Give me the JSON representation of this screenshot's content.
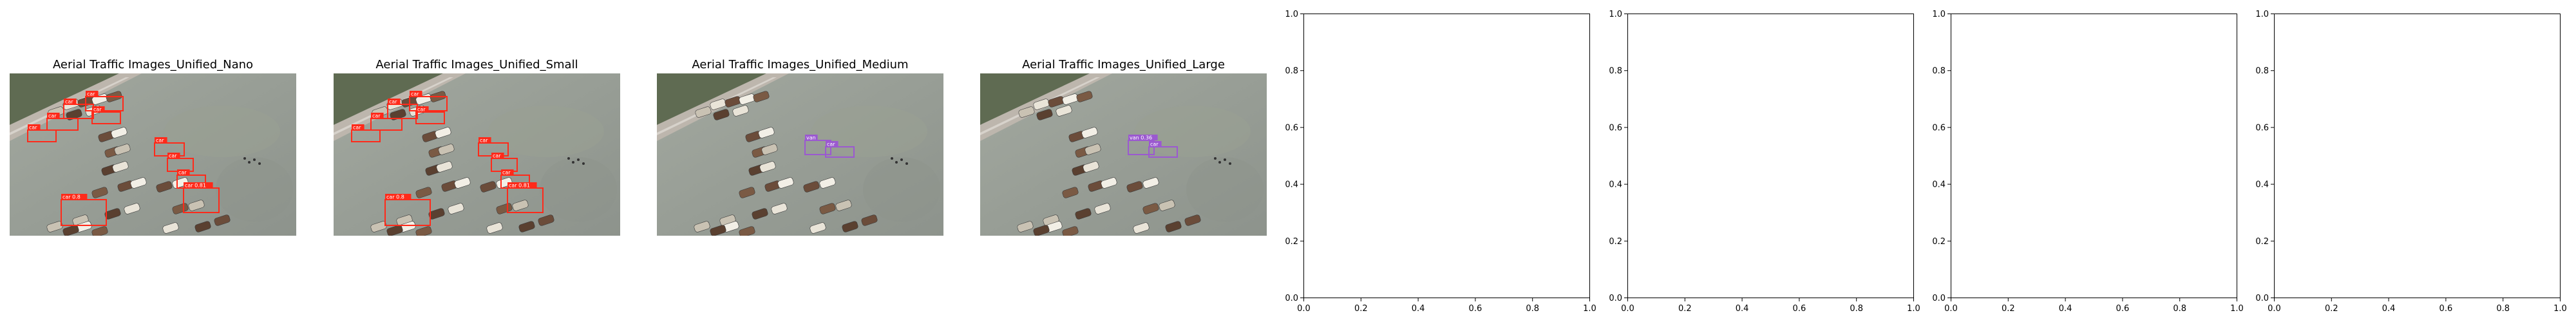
{
  "chart_data": [
    {
      "type": "image",
      "title": "Aerial Traffic Images_Unified_Nano",
      "box_color": "#ff2a1a",
      "detections": [
        {
          "label": "car"
        },
        {
          "label": "car"
        },
        {
          "label": "car"
        },
        {
          "label": "car"
        },
        {
          "label": "car"
        },
        {
          "label": "car"
        },
        {
          "label": "car"
        },
        {
          "label": "car"
        },
        {
          "label": "car 0.8"
        },
        {
          "label": "car 0.81"
        }
      ]
    },
    {
      "type": "image",
      "title": "Aerial Traffic Images_Unified_Small",
      "box_color": "#ff2a1a",
      "detections": [
        {
          "label": "car"
        },
        {
          "label": "car"
        },
        {
          "label": "car"
        },
        {
          "label": "car"
        },
        {
          "label": "car"
        },
        {
          "label": "car"
        },
        {
          "label": "car"
        },
        {
          "label": "car"
        },
        {
          "label": "car 0.8"
        },
        {
          "label": "car 0.81"
        }
      ]
    },
    {
      "type": "image",
      "title": "Aerial Traffic Images_Unified_Medium",
      "box_color": "#9b59d0",
      "detections": [
        {
          "label": "van"
        },
        {
          "label": "car"
        }
      ]
    },
    {
      "type": "image",
      "title": "Aerial Traffic Images_Unified_Large",
      "box_color": "#9b59d0",
      "detections": [
        {
          "label": "van 0.36"
        },
        {
          "label": "car"
        }
      ]
    },
    {
      "type": "empty",
      "xlim": [
        0,
        1
      ],
      "ylim": [
        0,
        1
      ],
      "xticks": [
        "0.0",
        "0.2",
        "0.4",
        "0.6",
        "0.8",
        "1.0"
      ],
      "yticks": [
        "0.0",
        "0.2",
        "0.4",
        "0.6",
        "0.8",
        "1.0"
      ]
    },
    {
      "type": "empty",
      "xlim": [
        0,
        1
      ],
      "ylim": [
        0,
        1
      ],
      "xticks": [
        "0.0",
        "0.2",
        "0.4",
        "0.6",
        "0.8",
        "1.0"
      ],
      "yticks": [
        "0.0",
        "0.2",
        "0.4",
        "0.6",
        "0.8",
        "1.0"
      ]
    },
    {
      "type": "empty",
      "xlim": [
        0,
        1
      ],
      "ylim": [
        0,
        1
      ],
      "xticks": [
        "0.0",
        "0.2",
        "0.4",
        "0.6",
        "0.8",
        "1.0"
      ],
      "yticks": [
        "0.0",
        "0.2",
        "0.4",
        "0.6",
        "0.8",
        "1.0"
      ]
    },
    {
      "type": "empty",
      "xlim": [
        0,
        1
      ],
      "ylim": [
        0,
        1
      ],
      "xticks": [
        "0.0",
        "0.2",
        "0.4",
        "0.6",
        "0.8",
        "1.0"
      ],
      "yticks": [
        "0.0",
        "0.2",
        "0.4",
        "0.6",
        "0.8",
        "1.0"
      ]
    }
  ]
}
